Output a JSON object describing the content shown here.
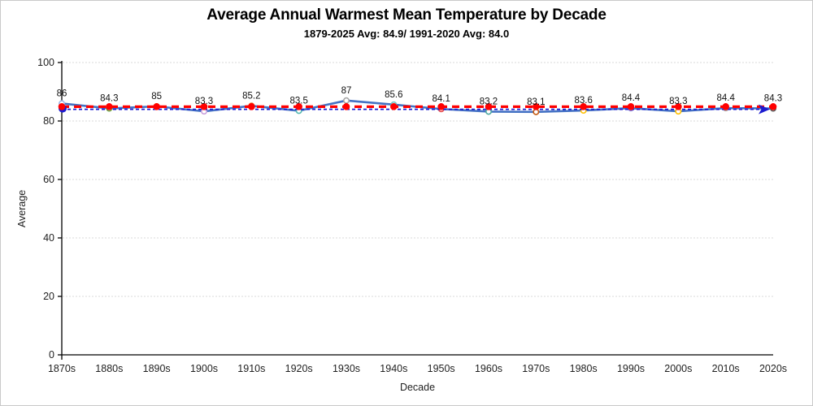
{
  "chart_data": {
    "type": "line",
    "title": "Average Annual Warmest Mean Temperature by Decade",
    "subtitle": "1879-2025 Avg: 84.9/ 1991-2020 Avg: 84.0",
    "xlabel": "Decade",
    "ylabel": "Average",
    "ylim": [
      0,
      100
    ],
    "yticks": [
      0,
      20,
      40,
      60,
      80,
      100
    ],
    "grid": "horizontal-dotted",
    "grid_color": "#d9d9d9",
    "axis_color": "#000000",
    "text_color": "#1f1f1f",
    "label_color": "#111111",
    "legend": "none",
    "categories": [
      "1870s",
      "1880s",
      "1890s",
      "1900s",
      "1910s",
      "1920s",
      "1930s",
      "1940s",
      "1950s",
      "1960s",
      "1970s",
      "1980s",
      "1990s",
      "2000s",
      "2010s",
      "2020s"
    ],
    "series": [
      {
        "name": "decade-average",
        "kind": "data-line",
        "style": "solid",
        "color": "#4472C4",
        "line_width": 2.6,
        "marker": "circle-open",
        "marker_colors": [
          "#9DB7E8",
          "#70AD47",
          "#FFC000",
          "#C9A0DC",
          "#ED7D31",
          "#53B8B0",
          "#A6A6A6",
          "#6FC5C5",
          "#E84C4C",
          "#4FA8A0",
          "#C55A11",
          "#FFC000",
          "#7B7BE0",
          "#FFC000",
          "#A6A6A6",
          "#595959"
        ],
        "values": [
          86,
          84.3,
          85,
          83.3,
          85.2,
          83.5,
          87,
          85.6,
          84.1,
          83.2,
          83.1,
          83.6,
          84.4,
          83.3,
          84.4,
          84.3
        ],
        "labels": [
          "86",
          "84.3",
          "85",
          "83.3",
          "85.2",
          "83.5",
          "87",
          "85.6",
          "84.1",
          "83.2",
          "83.1",
          "83.6",
          "84.4",
          "83.3",
          "84.4",
          "84.3"
        ]
      },
      {
        "name": "avg-1879-2025",
        "kind": "constant-line",
        "style": "dashed",
        "color": "#FF0000",
        "line_width": 3.2,
        "marker": "circle-filled",
        "value": 84.9
      },
      {
        "name": "avg-1991-2020",
        "kind": "constant-line",
        "style": "dashed-thin",
        "color": "#1b1bd0",
        "line_width": 1.7,
        "value": 84.0,
        "start_marker": "filled-circle",
        "end_marker": "arrow"
      }
    ]
  }
}
